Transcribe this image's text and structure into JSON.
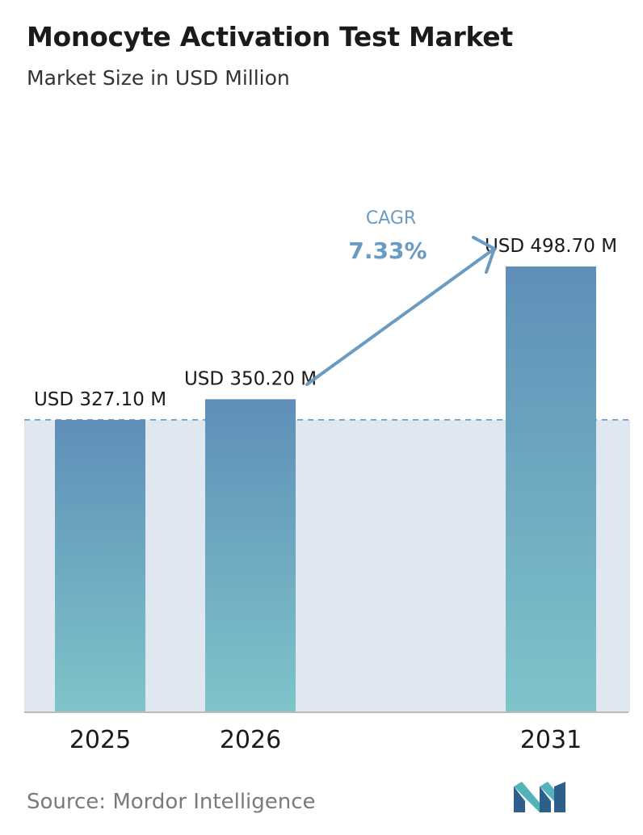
{
  "header": {
    "title": "Monocyte Activation Test Market",
    "subtitle": "Market Size in USD Million"
  },
  "chart_data": {
    "type": "bar",
    "categories": [
      "2025",
      "2026",
      "2031"
    ],
    "values": [
      327.1,
      350.2,
      498.7
    ],
    "value_labels": [
      "USD 327.10 M",
      "USD 350.20 M",
      "USD 498.70 M"
    ],
    "ylim": [
      0,
      580
    ],
    "grid": false,
    "annotation": {
      "cagr_label": "CAGR",
      "cagr_value": "7.33%"
    },
    "colors": {
      "bar_top": "#5f8fb8",
      "bar_bottom": "#7ec4c9",
      "band": "#dfe8f0",
      "dashed_line": "#5f8fb8",
      "arrow": "#6a9bc3",
      "axis": "#bbbbbb"
    }
  },
  "footer": {
    "source": "Source: Mordor Intelligence",
    "logo_icon": "mordor-intelligence-logo-icon",
    "logo_colors": [
      "#2e5f8a",
      "#4fb3b8"
    ]
  }
}
